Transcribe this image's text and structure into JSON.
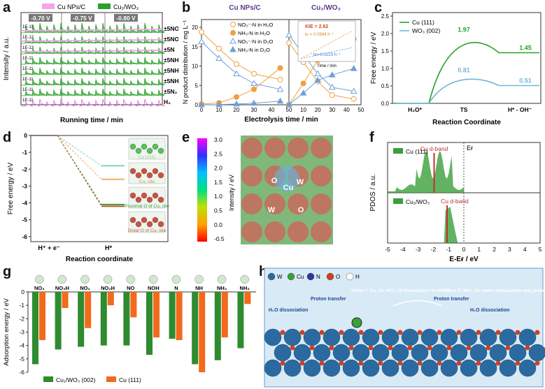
{
  "panels": {
    "a": {
      "label": "a",
      "legend": [
        "Cu NPs/C",
        "Cu₁/WO₃"
      ],
      "potentials": [
        "-0.70 V",
        "-0.75 V",
        "-0.80 V"
      ],
      "rows": [
        {
          "scale": "1E-11",
          "species": "±5NO₂"
        },
        {
          "scale": "1E-12",
          "species": "±5NO"
        },
        {
          "scale": "1E-13",
          "species": "±5N"
        },
        {
          "scale": "1E-11",
          "species": "±5NH"
        },
        {
          "scale": "1E-11",
          "species": "±5NH₂"
        },
        {
          "scale": "1E-11",
          "species": "±5NH₃"
        },
        {
          "scale": "1E-11",
          "species": "±5N₂"
        },
        {
          "scale": "1E-11",
          "species": "H₂"
        }
      ],
      "xlabel": "Running time / min",
      "ylabel": "Intensity / a.u.",
      "colors": {
        "cu_np": "#e05ad8",
        "cu1": "#2aa02a"
      }
    },
    "b": {
      "label": "b",
      "left_title": "Cu NPs/C",
      "right_title": "Cu₁/WO₃",
      "legend": [
        "NO₃⁻-N in H₂O",
        "NH₃-N in H₂O",
        "NO₃⁻-N in D₂O",
        "NH₃-N in D₂O"
      ],
      "inset_kie": "KIE = 2.62",
      "inset_k1": "kₕ = 0.0584 h⁻¹",
      "inset_k2": "kᴅ=0.0223 h⁻¹",
      "inset_xlabel": "Time / min",
      "xlabel": "Electrolysis time / min",
      "ylabel": "N product distribution / mg L⁻¹",
      "xticks": [
        "0",
        "10",
        "20",
        "30",
        "40",
        "50",
        "10",
        "20",
        "30",
        "40",
        "50"
      ],
      "yticks": [
        "0",
        "5",
        "10",
        "15",
        "20"
      ]
    },
    "c": {
      "label": "c",
      "legend": [
        "Cu (111)",
        "WO₃ (002)"
      ],
      "values": {
        "cu_ts": "1.97",
        "cu_end": "1.45",
        "wo_ts": "0.81",
        "wo_end": "0.51"
      },
      "xticks": [
        "H₂O*",
        "TS",
        "H* - OH⁻"
      ],
      "yticks": [
        "0.0",
        "0.5",
        "1.0",
        "1.5",
        "2.0",
        "2.5"
      ],
      "xlabel": "Reaction Coordinate",
      "ylabel": "Free energy / eV",
      "colors": {
        "cu": "#2aa02a",
        "wo": "#6fb8d8"
      }
    },
    "d": {
      "label": "d",
      "site_labels": [
        "Cu (111)",
        "Cu₁ site",
        "Proximal O of Cu₁ site",
        "Distal O of Cu₁ site"
      ],
      "xticks": [
        "H⁺ + e⁻",
        "H*"
      ],
      "yticks": [
        "0",
        "-1",
        "-2",
        "-3",
        "-4",
        "-5",
        "-6"
      ],
      "xlabel": "Reaction coordinate",
      "ylabel": "Free energy / eV"
    },
    "e": {
      "label": "e",
      "scale_ticks": [
        "3.0",
        "2.5",
        "2.0",
        "1.5",
        "1.0",
        "0.5",
        "0.0",
        "-0.5"
      ],
      "ylabel": "Intensity / eV",
      "atom_labels": [
        "O",
        "W",
        "Cu",
        "W",
        "O"
      ]
    },
    "f": {
      "label": "f",
      "top_legend": "Cu (111)",
      "bottom_legend": "Cu₁/WO₃",
      "dband": "Cu d-band",
      "ef": "Eғ",
      "xticks": [
        "-5",
        "-4",
        "-3",
        "-2",
        "-1",
        "0",
        "1",
        "2",
        "3",
        "4",
        "5"
      ],
      "xlabel": "E-Eғ / eV",
      "ylabel": "PDOS / a.u."
    },
    "g": {
      "label": "g",
      "categories": [
        "NO₃",
        "NO₃H",
        "NO₂",
        "NO₂H",
        "NO",
        "NOH",
        "N",
        "NH",
        "NH₂",
        "NH₃"
      ],
      "legend": [
        "Cu₁/WO₃ (002)",
        "Cu (111)"
      ],
      "yticks": [
        "0",
        "-1",
        "-2",
        "-3",
        "-4",
        "-5",
        "-6"
      ],
      "ylabel": "Adsorption energy / eV",
      "colors": {
        "cu1": "#2e8b2e",
        "cu": "#f26a1b"
      }
    },
    "h": {
      "label": "h",
      "legend_atoms": [
        "W",
        "Cu",
        "N",
        "O",
        "H"
      ],
      "driver1": "Driver I: Cu₁ for NO₃⁻-N dissociation to NH₃-N",
      "driver2": "Driver II: WO₃ for water dissociation and proton transfer",
      "labels": [
        "H₂O dissociation",
        "Proton transfer",
        "Proton transfer",
        "H₂O dissociation"
      ]
    }
  },
  "chart_data": [
    {
      "type": "bar",
      "title": "",
      "categories": [
        "NO₃",
        "NO₃H",
        "NO₂",
        "NO₂H",
        "NO",
        "NOH",
        "N",
        "NH",
        "NH₂",
        "NH₃"
      ],
      "series": [
        {
          "name": "Cu₁/WO₃ (002)",
          "values": [
            -5.4,
            -4.3,
            -4.1,
            -4.0,
            -4.0,
            -4.7,
            -3.5,
            -5.4,
            -5.1,
            -4.2
          ]
        },
        {
          "name": "Cu (111)",
          "values": [
            -3.6,
            -1.2,
            -2.7,
            -1.0,
            -1.9,
            -3.4,
            -3.6,
            -6.0,
            -3.4,
            -0.9
          ]
        }
      ],
      "xlabel": "",
      "ylabel": "Adsorption energy / eV",
      "ylim": [
        -6,
        0
      ]
    },
    {
      "type": "line",
      "title": "",
      "categories": [
        "H₂O*",
        "TS",
        "H* - OH⁻"
      ],
      "series": [
        {
          "name": "Cu (111)",
          "values": [
            0.0,
            1.97,
            1.45
          ]
        },
        {
          "name": "WO₃ (002)",
          "values": [
            0.0,
            0.81,
            0.51
          ]
        }
      ],
      "xlabel": "Reaction Coordinate",
      "ylabel": "Free energy / eV",
      "ylim": [
        0,
        2.5
      ]
    }
  ]
}
